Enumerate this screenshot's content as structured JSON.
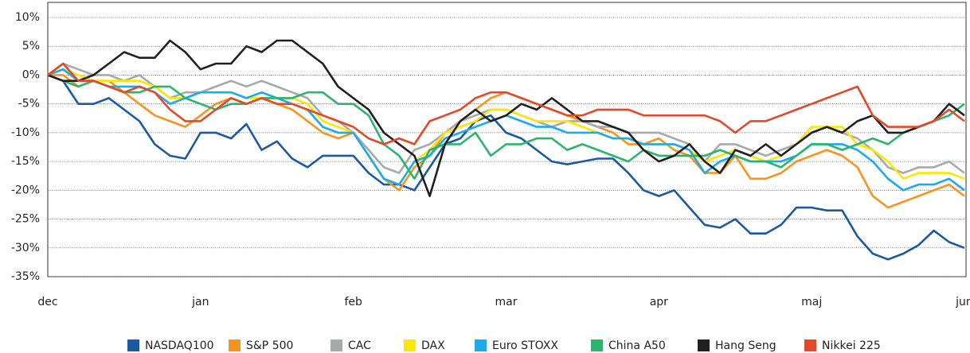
{
  "chart_data": {
    "type": "line",
    "categories": [
      "dec",
      null,
      null,
      null,
      null,
      null,
      null,
      null,
      null,
      null,
      "jan",
      null,
      null,
      null,
      null,
      null,
      null,
      null,
      null,
      null,
      "feb",
      null,
      null,
      null,
      null,
      null,
      null,
      null,
      null,
      null,
      "mar",
      null,
      null,
      null,
      null,
      null,
      null,
      null,
      null,
      null,
      "apr",
      null,
      null,
      null,
      null,
      null,
      null,
      null,
      null,
      null,
      "maj",
      null,
      null,
      null,
      null,
      null,
      null,
      null,
      null,
      null,
      "jun"
    ],
    "series": [
      {
        "name": "NASDAQ100",
        "color": "#1a5aa0",
        "values": [
          0,
          -1,
          -5,
          -5,
          -4,
          -6,
          -8,
          -12,
          -14,
          -14.5,
          -10,
          -10,
          -11,
          -8.5,
          -13,
          -11.5,
          -14.5,
          -16,
          -14,
          -14,
          -14,
          -17,
          -19,
          -19,
          -20,
          -16,
          -12,
          -11,
          -8,
          -7,
          -10,
          -11,
          -13,
          -15,
          -15.5,
          -15,
          -14.5,
          -14.5,
          -17,
          -20,
          -21,
          -20,
          -23,
          -26,
          -26.5,
          -25,
          -27.5,
          -27.5,
          -26,
          -23,
          -23,
          -23.5,
          -23.5,
          -28,
          -31,
          -32,
          -31,
          -29.5,
          -27,
          -29,
          -30
        ]
      },
      {
        "name": "S&P 500",
        "color": "#f7941d",
        "values": [
          0,
          0,
          -2,
          -1,
          -1,
          -3,
          -5,
          -7,
          -8,
          -9,
          -7,
          -5,
          -4,
          -5,
          -4,
          -5,
          -6,
          -8,
          -10,
          -11,
          -10,
          -14,
          -18,
          -20,
          -16,
          -14,
          -10,
          -8,
          -6,
          -4,
          -3,
          -4,
          -5,
          -6,
          -7,
          -8,
          -9,
          -10,
          -12,
          -12,
          -11,
          -13,
          -14,
          -17,
          -17,
          -14,
          -18,
          -18,
          -17,
          -15,
          -14,
          -13,
          -14,
          -16,
          -21,
          -23,
          -22,
          -21,
          -20,
          -19,
          -21
        ]
      },
      {
        "name": "CAC",
        "color": "#a7a9ac",
        "values": [
          0,
          2,
          1,
          0,
          0,
          -1,
          0,
          -2,
          -4,
          -3,
          -3,
          -2,
          -1,
          -2,
          -1,
          -2,
          -3,
          -4,
          -7,
          -8,
          -10,
          -13,
          -16,
          -17,
          -13,
          -12,
          -10,
          -8,
          -7,
          -6,
          -6,
          -7,
          -8,
          -9,
          -8,
          -8,
          -9,
          -9,
          -10,
          -10,
          -10,
          -11,
          -12,
          -15,
          -12,
          -12,
          -13,
          -14,
          -13,
          -12,
          -10,
          -9,
          -10,
          -11,
          -13,
          -16,
          -17,
          -16,
          -16,
          -15,
          -17
        ]
      },
      {
        "name": "DAX",
        "color": "#ffe600",
        "values": [
          0,
          1,
          0,
          -1,
          -1,
          -1,
          -1,
          -2,
          -4,
          -4,
          -3,
          -3,
          -3,
          -4,
          -4,
          -4,
          -4,
          -5,
          -8,
          -9,
          -10,
          -14,
          -18,
          -19,
          -15,
          -13,
          -10,
          -9,
          -8,
          -6,
          -6,
          -7,
          -8,
          -8,
          -8,
          -9,
          -10,
          -11,
          -11,
          -12,
          -12,
          -12,
          -13,
          -15,
          -14,
          -13,
          -14,
          -15,
          -14,
          -12,
          -9,
          -9,
          -9,
          -12,
          -13,
          -15,
          -18,
          -17,
          -17,
          -17,
          -18
        ]
      },
      {
        "name": "Euro STOXX",
        "color": "#1caaed",
        "values": [
          0,
          1,
          -1,
          -1,
          -2,
          -2,
          -2,
          -3,
          -5,
          -4,
          -3,
          -3,
          -3,
          -4,
          -3,
          -4,
          -5,
          -6,
          -9,
          -10,
          -10,
          -14,
          -18,
          -19,
          -15,
          -14,
          -11,
          -10,
          -9,
          -8,
          -7,
          -8,
          -9,
          -9,
          -10,
          -10,
          -10,
          -11,
          -11,
          -12,
          -12,
          -12,
          -13,
          -17,
          -15,
          -14,
          -15,
          -15,
          -15,
          -14,
          -12,
          -12,
          -12,
          -13,
          -15,
          -18,
          -20,
          -19,
          -19,
          -18,
          -20
        ]
      },
      {
        "name": "China A50",
        "color": "#2db36f",
        "values": [
          0,
          -1,
          -2,
          -1,
          -2,
          -3,
          -3,
          -2,
          -2,
          -4,
          -5,
          -6,
          -5,
          -5,
          -4,
          -4,
          -4,
          -3,
          -3,
          -5,
          -5,
          -7,
          -12,
          -14,
          -18,
          -13,
          -12,
          -12,
          -10,
          -14,
          -12,
          -12,
          -11,
          -11,
          -13,
          -12,
          -13,
          -14,
          -15,
          -13,
          -14,
          -14,
          -14,
          -14,
          -13,
          -14,
          -15,
          -15,
          -16,
          -14,
          -12,
          -12,
          -13,
          -12,
          -11,
          -12,
          -10,
          -9,
          -8,
          -7,
          -5
        ]
      },
      {
        "name": "Hang Seng",
        "color": "#231f20",
        "values": [
          0,
          -1,
          -1,
          0,
          2,
          4,
          3,
          3,
          6,
          4,
          1,
          2,
          2,
          5,
          4,
          6,
          6,
          4,
          2,
          -2,
          -4,
          -6,
          -10,
          -12,
          -14,
          -21,
          -12,
          -8,
          -6,
          -8,
          -7,
          -5,
          -6,
          -4,
          -6,
          -8,
          -8,
          -9,
          -10,
          -13,
          -15,
          -14,
          -12,
          -15,
          -17,
          -13,
          -14,
          -12,
          -14,
          -12,
          -10,
          -9,
          -10,
          -8,
          -7,
          -10,
          -10,
          -9,
          -8,
          -5,
          -7
        ]
      },
      {
        "name": "Nikkei 225",
        "color": "#e04a2a",
        "values": [
          0,
          2,
          -1,
          -1,
          -2,
          -3,
          -2,
          -3,
          -6,
          -8,
          -8,
          -6,
          -4,
          -5,
          -4,
          -5,
          -5,
          -6,
          -7,
          -8,
          -9,
          -11,
          -12,
          -11,
          -12,
          -8,
          -7,
          -6,
          -4,
          -3,
          -3,
          -4,
          -5,
          -6,
          -7,
          -7,
          -6,
          -6,
          -6,
          -7,
          -7,
          -7,
          -7,
          -7,
          -8,
          -10,
          -8,
          -8,
          -7,
          -6,
          -5,
          -4,
          -3,
          -2,
          -7,
          -9,
          -9,
          -9,
          -8,
          -6,
          -8
        ]
      }
    ],
    "ylim": [
      -35,
      10
    ],
    "yticks": [
      {
        "value": 10,
        "label": "10%"
      },
      {
        "value": 5,
        "label": "5%"
      },
      {
        "value": 0,
        "label": "0%"
      },
      {
        "value": -5,
        "label": "-5%"
      },
      {
        "value": -10,
        "label": "-10%"
      },
      {
        "value": -15,
        "label": "-15%"
      },
      {
        "value": -20,
        "label": "-20%"
      },
      {
        "value": -25,
        "label": "-25%"
      },
      {
        "value": -30,
        "label": "-30%"
      },
      {
        "value": -35,
        "label": "-35%"
      }
    ],
    "grid": true,
    "legend": "bottom"
  }
}
